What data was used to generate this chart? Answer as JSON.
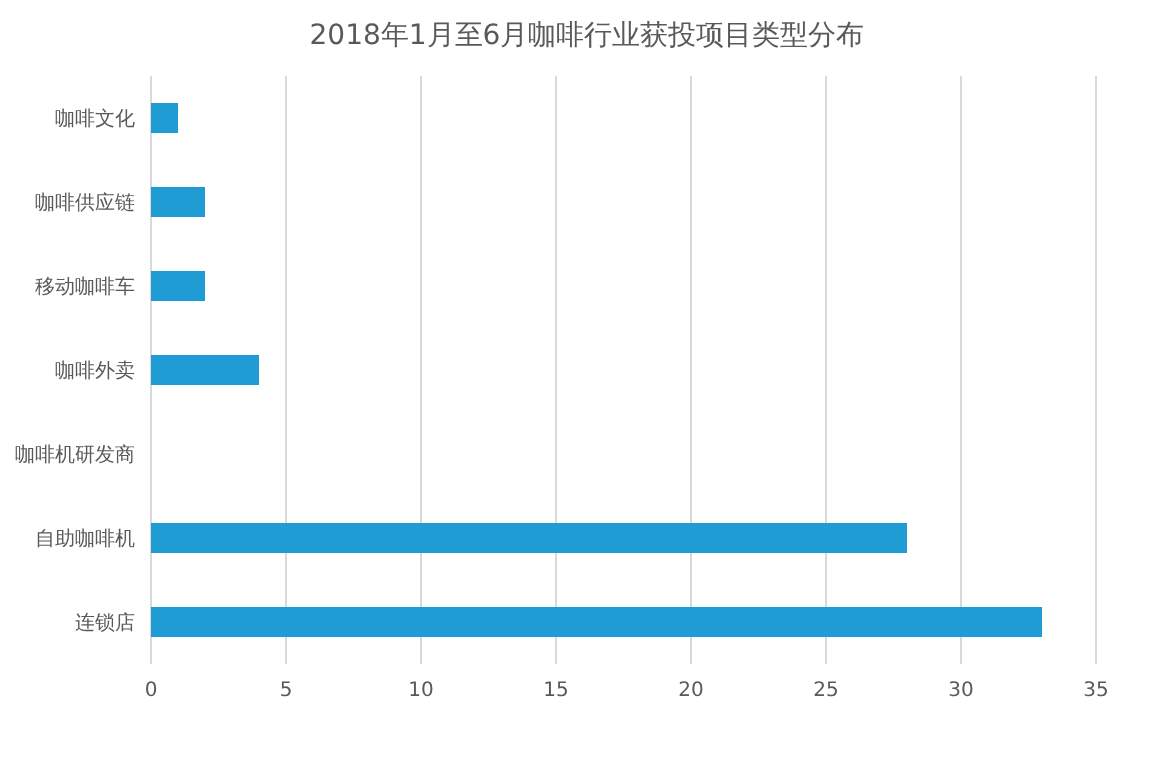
{
  "chart_data": {
    "type": "bar",
    "orientation": "horizontal",
    "title": "2018年1月至6月咖啡行业获投项目类型分布",
    "categories": [
      "咖啡文化",
      "咖啡供应链",
      "移动咖啡车",
      "咖啡外卖",
      "咖啡机研发商",
      "自助咖啡机",
      "连锁店"
    ],
    "values": [
      1,
      2,
      2,
      4,
      null,
      28,
      33
    ],
    "color": "#1f9cd4",
    "xlim": [
      0,
      35
    ],
    "xticks": [
      0,
      5,
      10,
      15,
      20,
      25,
      30,
      35
    ],
    "grid": "x"
  }
}
